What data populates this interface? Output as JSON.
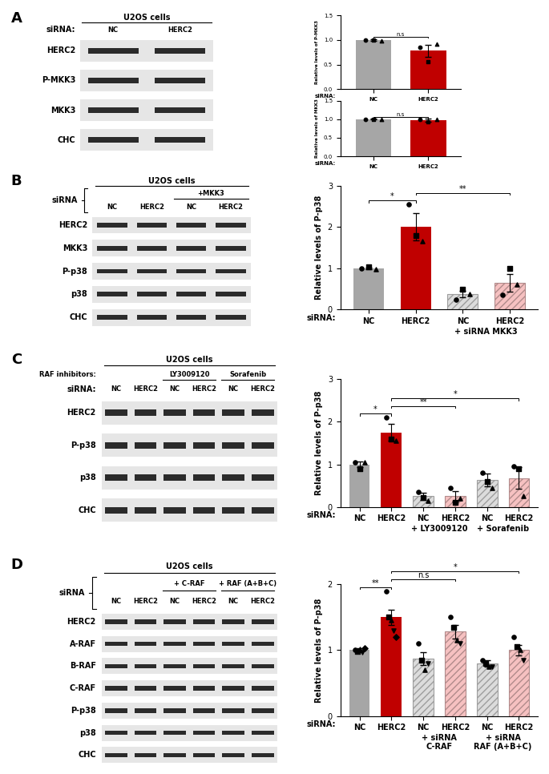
{
  "blots": [
    {
      "label": "A",
      "title": "U2OS cells",
      "condition_label": "siRNA:",
      "lanes": [
        "NC",
        "HERC2"
      ],
      "rows": [
        "HERC2",
        "P-MKK3",
        "MKK3",
        "CHC"
      ]
    },
    {
      "label": "B",
      "title": "U2OS cells",
      "condition_label": "siRNA",
      "treatments": [
        {
          "label": "+MKK3",
          "lanes": [
            2,
            3
          ]
        }
      ],
      "lanes": [
        "NC",
        "HERC2",
        "NC",
        "HERC2"
      ],
      "rows": [
        "HERC2",
        "MKK3",
        "P-p38",
        "p38",
        "CHC"
      ]
    },
    {
      "label": "C",
      "title": "U2OS cells",
      "condition_label": "siRNA:",
      "treatment_label": "RAF inhibitors:",
      "treatments": [
        {
          "label": "LY3009120",
          "lanes": [
            2,
            3
          ]
        },
        {
          "label": "Sorafenib",
          "lanes": [
            4,
            5
          ]
        }
      ],
      "lanes": [
        "NC",
        "HERC2",
        "NC",
        "HERC2",
        "NC",
        "HERC2"
      ],
      "rows": [
        "HERC2",
        "P-p38",
        "p38",
        "CHC"
      ]
    },
    {
      "label": "D",
      "title": "U2OS cells",
      "condition_label": "siRNA",
      "treatments": [
        {
          "label": "+ C-RAF",
          "lanes": [
            2,
            3
          ]
        },
        {
          "label": "+ RAF (A+B+C)",
          "lanes": [
            4,
            5
          ]
        }
      ],
      "lanes": [
        "NC",
        "HERC2",
        "NC",
        "HERC2",
        "NC",
        "HERC2"
      ],
      "rows": [
        "HERC2",
        "A-RAF",
        "B-RAF",
        "C-RAF",
        "P-p38",
        "p38",
        "CHC"
      ]
    }
  ],
  "chart_data": [
    {
      "type": "bar",
      "ylabel": "Relative levels of P-MKK3",
      "xlabel": "siRNA:",
      "categories": [
        "NC",
        "HERC2"
      ],
      "values": [
        1.0,
        0.78
      ],
      "errors": [
        0.02,
        0.12
      ],
      "points": [
        [
          1.0,
          1.0,
          0.98
        ],
        [
          0.85,
          0.55,
          0.92
        ]
      ],
      "colors": [
        "#a6a6a6",
        "#c00000"
      ],
      "ylim": [
        0,
        1.5
      ],
      "yticks": [
        {
          "value": 0,
          "label": "0.0"
        },
        {
          "value": 0.5,
          "label": "0.5"
        },
        {
          "value": 1.0,
          "label": "1.0"
        },
        {
          "value": 1.5,
          "label": "1.5"
        }
      ],
      "significance": [
        {
          "from": 0,
          "to": 1,
          "label": "n.s"
        }
      ]
    },
    {
      "type": "bar",
      "ylabel": "Relative levels of MKK3",
      "xlabel": "siRNA:",
      "categories": [
        "NC",
        "HERC2"
      ],
      "values": [
        1.0,
        0.97
      ],
      "errors": [
        0.01,
        0.04
      ],
      "points": [
        [
          1.0,
          1.0,
          1.0
        ],
        [
          1.0,
          0.92,
          1.0
        ]
      ],
      "colors": [
        "#a6a6a6",
        "#c00000"
      ],
      "ylim": [
        0,
        1.5
      ],
      "yticks": [
        {
          "value": 0,
          "label": "0.0"
        },
        {
          "value": 0.5,
          "label": "0.5"
        },
        {
          "value": 1.0,
          "label": "1.0"
        },
        {
          "value": 1.5,
          "label": "1.5"
        }
      ],
      "significance": [
        {
          "from": 0,
          "to": 1,
          "label": "n.s"
        }
      ]
    },
    {
      "type": "bar",
      "ylabel": "Relative levels of P-p38",
      "xlabel": "siRNA:",
      "categories": [
        "NC",
        "HERC2",
        "NC",
        "HERC2"
      ],
      "values": [
        1.0,
        2.0,
        0.38,
        0.65
      ],
      "errors": [
        0.02,
        0.33,
        0.08,
        0.22
      ],
      "points": [
        [
          1.0,
          1.03,
          0.97
        ],
        [
          2.55,
          1.8,
          1.65
        ],
        [
          0.25,
          0.5,
          0.38
        ],
        [
          0.35,
          1.0,
          0.6
        ]
      ],
      "colors": [
        "#a6a6a6",
        "#c00000",
        "#dcdcdc",
        "#f6c1c1"
      ],
      "groups": [
        {
          "label": "+ siRNA MKK3",
          "members": [
            2,
            3
          ]
        }
      ],
      "ylim": [
        0,
        3
      ],
      "yticks": [
        0,
        1,
        2,
        3
      ],
      "significance": [
        {
          "from": 0,
          "to": 1,
          "label": "*"
        },
        {
          "from": 1,
          "to": 3,
          "label": "**"
        }
      ]
    },
    {
      "type": "bar",
      "ylabel": "Relative levels of P-p38",
      "xlabel": "siRNA:",
      "categories": [
        "NC",
        "HERC2",
        "NC",
        "HERC2",
        "NC",
        "HERC2"
      ],
      "values": [
        1.0,
        1.75,
        0.25,
        0.25,
        0.63,
        0.68
      ],
      "errors": [
        0.07,
        0.2,
        0.08,
        0.12,
        0.15,
        0.25
      ],
      "points": [
        [
          1.05,
          0.9,
          1.05
        ],
        [
          2.1,
          1.6,
          1.55
        ],
        [
          0.35,
          0.22,
          0.15
        ],
        [
          0.45,
          0.1,
          0.2
        ],
        [
          0.8,
          0.6,
          0.45
        ],
        [
          0.95,
          0.9,
          0.25
        ]
      ],
      "colors": [
        "#a6a6a6",
        "#c00000",
        "#dcdcdc",
        "#f6c1c1",
        "#dcdcdc",
        "#f6c1c1"
      ],
      "groups": [
        {
          "label": "+ LY3009120",
          "members": [
            2,
            3
          ]
        },
        {
          "label": "+ Sorafenib",
          "members": [
            4,
            5
          ]
        }
      ],
      "ylim": [
        0,
        3
      ],
      "yticks": [
        0,
        1,
        2,
        3
      ],
      "significance": [
        {
          "from": 0,
          "to": 1,
          "label": "*"
        },
        {
          "from": 1,
          "to": 3,
          "label": "**"
        },
        {
          "from": 1,
          "to": 5,
          "label": "*"
        }
      ]
    },
    {
      "type": "bar",
      "ylabel": "Relative levels of P-p38",
      "xlabel": "siRNA:",
      "categories": [
        "NC",
        "HERC2",
        "NC",
        "HERC2",
        "NC",
        "HERC2"
      ],
      "values": [
        1.0,
        1.5,
        0.87,
        1.28,
        0.8,
        1.0
      ],
      "errors": [
        0.03,
        0.12,
        0.1,
        0.1,
        0.05,
        0.08
      ],
      "points": [
        [
          1.0,
          0.98,
          1.02,
          0.97,
          1.03
        ],
        [
          1.9,
          1.5,
          1.45,
          1.3,
          1.2
        ],
        [
          1.1,
          0.85,
          0.7,
          0.8
        ],
        [
          1.5,
          1.35,
          1.15,
          1.1
        ],
        [
          0.85,
          0.8,
          0.75,
          0.75
        ],
        [
          1.2,
          1.05,
          1.0,
          0.85
        ]
      ],
      "colors": [
        "#a6a6a6",
        "#c00000",
        "#dcdcdc",
        "#f6c1c1",
        "#dcdcdc",
        "#f6c1c1"
      ],
      "groups": [
        {
          "label": "+ siRNA\nC-RAF",
          "members": [
            2,
            3
          ]
        },
        {
          "label": "+ siRNA\nRAF (A+B+C)",
          "members": [
            4,
            5
          ]
        }
      ],
      "ylim": [
        0,
        2
      ],
      "yticks": [
        0,
        1,
        2
      ],
      "significance": [
        {
          "from": 0,
          "to": 1,
          "label": "**"
        },
        {
          "from": 1,
          "to": 3,
          "label": "n.s"
        },
        {
          "from": 1,
          "to": 5,
          "label": "*"
        }
      ]
    }
  ]
}
